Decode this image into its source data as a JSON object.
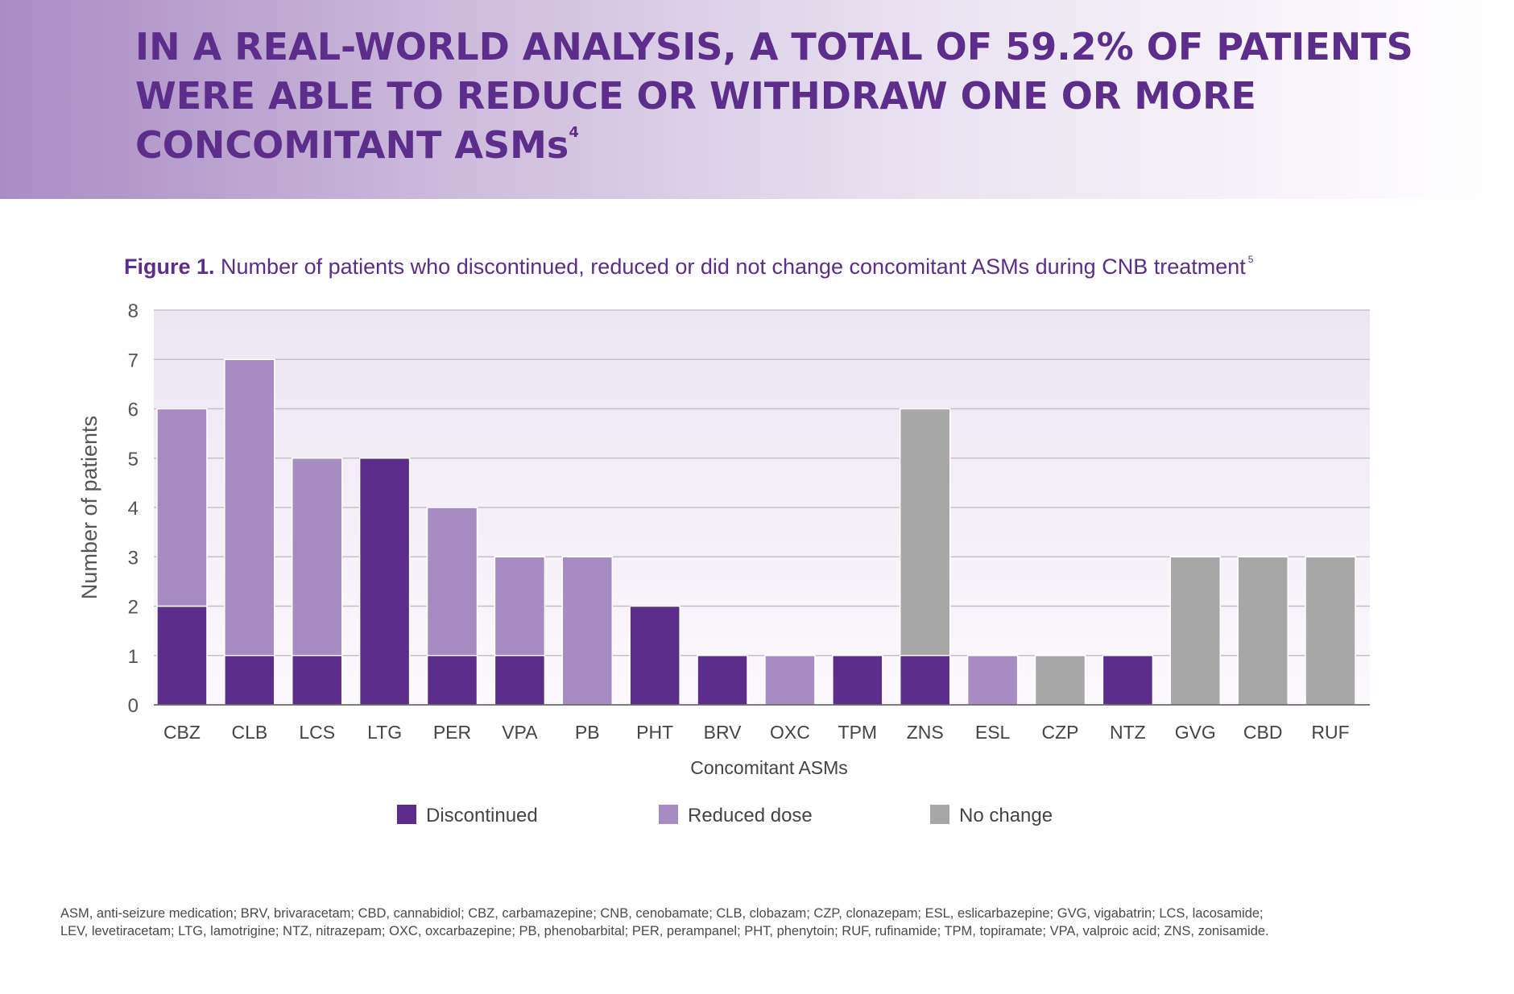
{
  "header": {
    "headline_lines": [
      "IN A REAL-WORLD ANALYSIS, A TOTAL OF 59.2% OF PATIENTS",
      "WERE ABLE TO REDUCE OR WITHDRAW ONE OR MORE",
      "CONCOMITANT ASMs"
    ],
    "headline_sup": "4"
  },
  "caption": {
    "figure_label": "Figure 1.",
    "text": "Number of patients who discontinued, reduced or did not change concomitant ASMs during CNB treatment",
    "sup": "5"
  },
  "chart_data": {
    "type": "bar",
    "stacked": true,
    "categories": [
      "CBZ",
      "CLB",
      "LCS",
      "LTG",
      "PER",
      "VPA",
      "PB",
      "PHT",
      "BRV",
      "OXC",
      "TPM",
      "ZNS",
      "ESL",
      "CZP",
      "NTZ",
      "GVG",
      "CBD",
      "RUF"
    ],
    "series": [
      {
        "name": "Discontinued",
        "color": "#5c2d8a",
        "values": [
          2,
          1,
          1,
          5,
          1,
          1,
          0,
          2,
          1,
          0,
          1,
          1,
          0,
          0,
          1,
          0,
          0,
          0
        ]
      },
      {
        "name": "Reduced dose",
        "color": "#a68cc0",
        "values": [
          4,
          6,
          4,
          0,
          3,
          2,
          3,
          0,
          0,
          1,
          0,
          0,
          1,
          0,
          0,
          0,
          0,
          0
        ]
      },
      {
        "name": "No change",
        "color": "#a7a7a7",
        "values": [
          0,
          0,
          0,
          0,
          0,
          0,
          0,
          0,
          0,
          0,
          0,
          5,
          0,
          1,
          0,
          3,
          3,
          3
        ]
      }
    ],
    "xlabel": "Concomitant ASMs",
    "ylabel": "Number of patients",
    "ylim": [
      0,
      8
    ],
    "yticks": [
      0,
      1,
      2,
      3,
      4,
      5,
      6,
      7,
      8
    ],
    "grid": true,
    "legend_position": "bottom-center"
  },
  "footnote": {
    "lines": [
      "ASM, anti-seizure medication; BRV, brivaracetam; CBD, cannabidiol; CBZ, carbamazepine; CNB, cenobamate; CLB, clobazam; CZP, clonazepam; ESL, eslicarbazepine; GVG, vigabatrin; LCS, lacosamide;",
      "LEV, levetiracetam; LTG, lamotrigine; NTZ, nitrazepam; OXC, oxcarbazepine; PB, phenobarbital; PER, perampanel; PHT, phenytoin; RUF, rufinamide; TPM, topiramate; VPA, valproic acid; ZNS, zonisamide."
    ]
  }
}
